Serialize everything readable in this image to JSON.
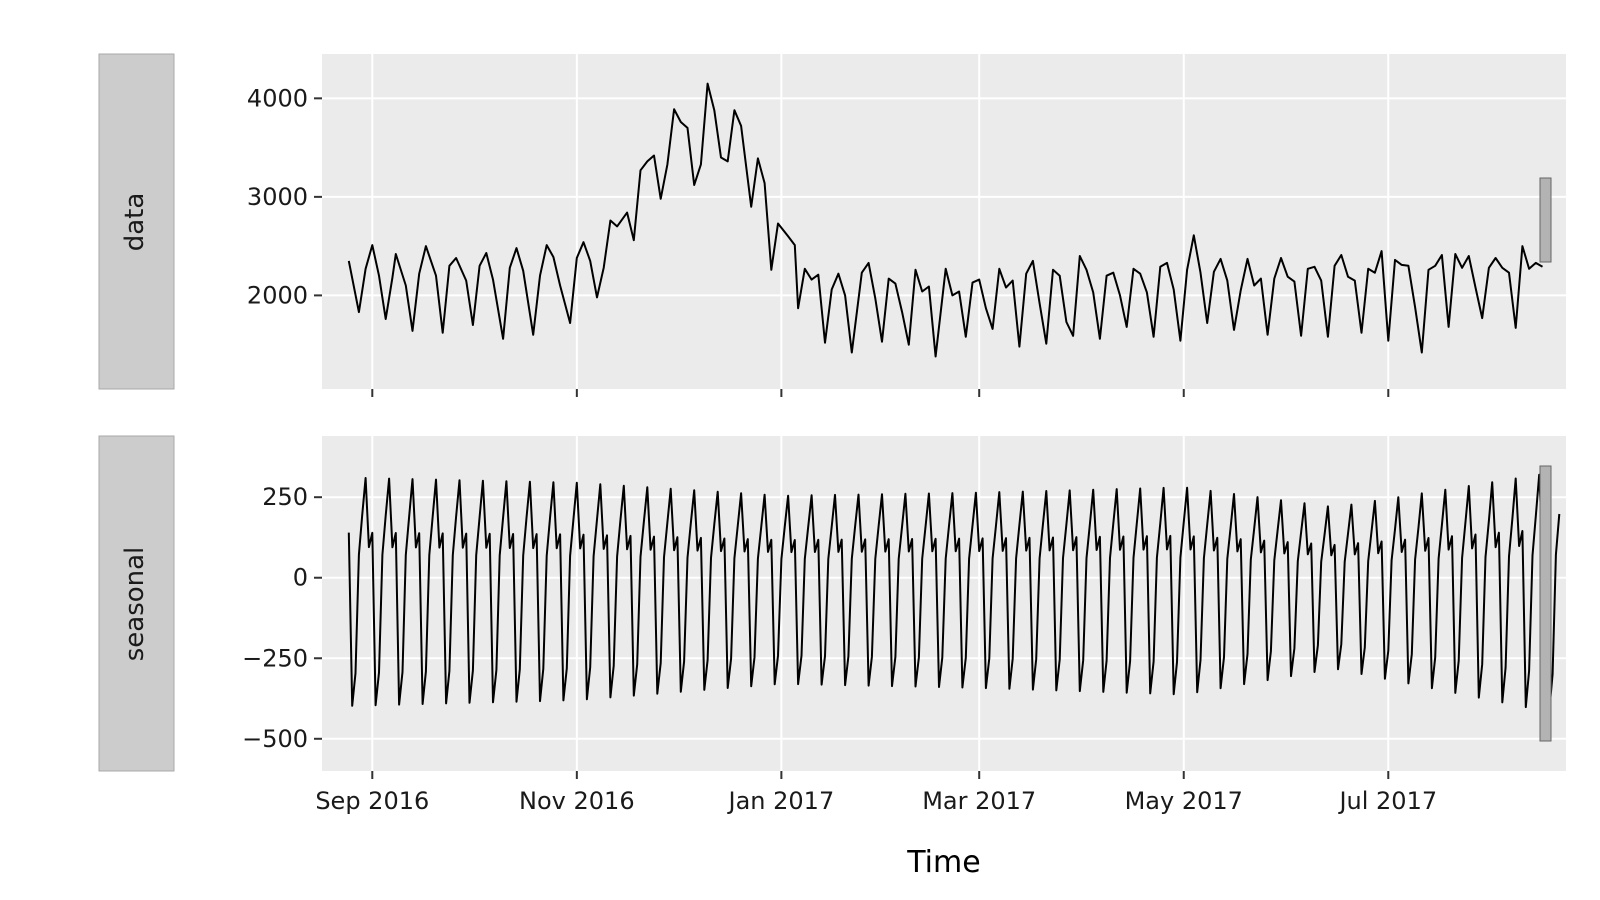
{
  "chart_data": {
    "type": "line",
    "layout": "faceted-vertical",
    "xlabel": "Time",
    "x_tick_labels": [
      "Sep 2016",
      "Nov 2016",
      "Jan 2017",
      "Mar 2017",
      "May 2017",
      "Jul 2017"
    ],
    "x_tick_dates": [
      "2016-09-01",
      "2016-11-01",
      "2017-01-01",
      "2017-03-01",
      "2017-05-01",
      "2017-07-01"
    ],
    "xlim": [
      "2016-08-17",
      "2017-08-23"
    ],
    "line_color": "#000000",
    "panel_background": "#ebebeb",
    "strip_background": "#cccccc",
    "grid": true,
    "panels": [
      {
        "strip": "data",
        "ylim": [
          1050,
          4450
        ],
        "y_ticks": [
          2000,
          3000,
          4000
        ],
        "y_tick_labels": [
          "2000",
          "3000",
          "4000"
        ],
        "series": {
          "start": "2016-08-25",
          "points": [
            [
              "2016-08-25",
              2350
            ],
            [
              "2016-08-28",
              1830
            ],
            [
              "2016-08-30",
              2270
            ],
            [
              "2016-09-01",
              2510
            ],
            [
              "2016-09-03",
              2200
            ],
            [
              "2016-09-05",
              1760
            ],
            [
              "2016-09-07",
              2180
            ],
            [
              "2016-09-08",
              2420
            ],
            [
              "2016-09-11",
              2100
            ],
            [
              "2016-09-13",
              1640
            ],
            [
              "2016-09-15",
              2220
            ],
            [
              "2016-09-17",
              2500
            ],
            [
              "2016-09-20",
              2200
            ],
            [
              "2016-09-22",
              1620
            ],
            [
              "2016-09-24",
              2300
            ],
            [
              "2016-09-26",
              2380
            ],
            [
              "2016-09-29",
              2150
            ],
            [
              "2016-10-01",
              1700
            ],
            [
              "2016-10-03",
              2300
            ],
            [
              "2016-10-05",
              2430
            ],
            [
              "2016-10-07",
              2160
            ],
            [
              "2016-10-10",
              1560
            ],
            [
              "2016-10-12",
              2280
            ],
            [
              "2016-10-14",
              2480
            ],
            [
              "2016-10-16",
              2250
            ],
            [
              "2016-10-19",
              1600
            ],
            [
              "2016-10-21",
              2200
            ],
            [
              "2016-10-23",
              2510
            ],
            [
              "2016-10-25",
              2390
            ],
            [
              "2016-10-27",
              2100
            ],
            [
              "2016-10-30",
              1720
            ],
            [
              "2016-11-01",
              2380
            ],
            [
              "2016-11-03",
              2540
            ],
            [
              "2016-11-05",
              2350
            ],
            [
              "2016-11-07",
              1980
            ],
            [
              "2016-11-09",
              2280
            ],
            [
              "2016-11-11",
              2760
            ],
            [
              "2016-11-13",
              2700
            ],
            [
              "2016-11-16",
              2840
            ],
            [
              "2016-11-18",
              2560
            ],
            [
              "2016-11-20",
              3270
            ],
            [
              "2016-11-22",
              3360
            ],
            [
              "2016-11-24",
              3420
            ],
            [
              "2016-11-26",
              2980
            ],
            [
              "2016-11-28",
              3330
            ],
            [
              "2016-11-30",
              3890
            ],
            [
              "2016-12-02",
              3760
            ],
            [
              "2016-12-04",
              3700
            ],
            [
              "2016-12-06",
              3120
            ],
            [
              "2016-12-08",
              3330
            ],
            [
              "2016-12-10",
              4150
            ],
            [
              "2016-12-12",
              3880
            ],
            [
              "2016-12-14",
              3400
            ],
            [
              "2016-12-16",
              3360
            ],
            [
              "2016-12-18",
              3880
            ],
            [
              "2016-12-20",
              3720
            ],
            [
              "2016-12-23",
              2900
            ],
            [
              "2016-12-25",
              3390
            ],
            [
              "2016-12-27",
              3140
            ],
            [
              "2016-12-29",
              2260
            ],
            [
              "2016-12-31",
              2730
            ],
            [
              "2017-01-03",
              2600
            ],
            [
              "2017-01-05",
              2510
            ],
            [
              "2017-01-06",
              1870
            ],
            [
              "2017-01-08",
              2270
            ],
            [
              "2017-01-10",
              2160
            ],
            [
              "2017-01-12",
              2210
            ],
            [
              "2017-01-14",
              1520
            ],
            [
              "2017-01-16",
              2060
            ],
            [
              "2017-01-18",
              2220
            ],
            [
              "2017-01-20",
              2000
            ],
            [
              "2017-01-22",
              1420
            ],
            [
              "2017-01-25",
              2230
            ],
            [
              "2017-01-27",
              2330
            ],
            [
              "2017-01-29",
              1970
            ],
            [
              "2017-01-31",
              1530
            ],
            [
              "2017-02-02",
              2170
            ],
            [
              "2017-02-04",
              2120
            ],
            [
              "2017-02-06",
              1830
            ],
            [
              "2017-02-08",
              1500
            ],
            [
              "2017-02-10",
              2260
            ],
            [
              "2017-02-12",
              2040
            ],
            [
              "2017-02-14",
              2090
            ],
            [
              "2017-02-16",
              1380
            ],
            [
              "2017-02-19",
              2270
            ],
            [
              "2017-02-21",
              2000
            ],
            [
              "2017-02-23",
              2040
            ],
            [
              "2017-02-25",
              1580
            ],
            [
              "2017-02-27",
              2130
            ],
            [
              "2017-03-01",
              2160
            ],
            [
              "2017-03-03",
              1870
            ],
            [
              "2017-03-05",
              1660
            ],
            [
              "2017-03-07",
              2270
            ],
            [
              "2017-03-09",
              2080
            ],
            [
              "2017-03-11",
              2150
            ],
            [
              "2017-03-13",
              1480
            ],
            [
              "2017-03-15",
              2220
            ],
            [
              "2017-03-17",
              2350
            ],
            [
              "2017-03-19",
              1920
            ],
            [
              "2017-03-21",
              1510
            ],
            [
              "2017-03-23",
              2260
            ],
            [
              "2017-03-25",
              2200
            ],
            [
              "2017-03-27",
              1730
            ],
            [
              "2017-03-29",
              1590
            ],
            [
              "2017-03-31",
              2400
            ],
            [
              "2017-04-02",
              2260
            ],
            [
              "2017-04-04",
              2030
            ],
            [
              "2017-04-06",
              1560
            ],
            [
              "2017-04-08",
              2200
            ],
            [
              "2017-04-10",
              2230
            ],
            [
              "2017-04-12",
              2000
            ],
            [
              "2017-04-14",
              1680
            ],
            [
              "2017-04-16",
              2270
            ],
            [
              "2017-04-18",
              2220
            ],
            [
              "2017-04-20",
              2030
            ],
            [
              "2017-04-22",
              1580
            ],
            [
              "2017-04-24",
              2290
            ],
            [
              "2017-04-26",
              2330
            ],
            [
              "2017-04-28",
              2060
            ],
            [
              "2017-04-30",
              1540
            ],
            [
              "2017-05-02",
              2260
            ],
            [
              "2017-05-04",
              2610
            ],
            [
              "2017-05-06",
              2230
            ],
            [
              "2017-05-08",
              1720
            ],
            [
              "2017-05-10",
              2240
            ],
            [
              "2017-05-12",
              2370
            ],
            [
              "2017-05-14",
              2150
            ],
            [
              "2017-05-16",
              1650
            ],
            [
              "2017-05-18",
              2050
            ],
            [
              "2017-05-20",
              2370
            ],
            [
              "2017-05-22",
              2100
            ],
            [
              "2017-05-24",
              2170
            ],
            [
              "2017-05-26",
              1600
            ],
            [
              "2017-05-28",
              2170
            ],
            [
              "2017-05-30",
              2380
            ],
            [
              "2017-06-01",
              2190
            ],
            [
              "2017-06-03",
              2140
            ],
            [
              "2017-06-05",
              1590
            ],
            [
              "2017-06-07",
              2270
            ],
            [
              "2017-06-09",
              2290
            ],
            [
              "2017-06-11",
              2150
            ],
            [
              "2017-06-13",
              1580
            ],
            [
              "2017-06-15",
              2300
            ],
            [
              "2017-06-17",
              2410
            ],
            [
              "2017-06-19",
              2190
            ],
            [
              "2017-06-21",
              2150
            ],
            [
              "2017-06-23",
              1620
            ],
            [
              "2017-06-25",
              2270
            ],
            [
              "2017-06-27",
              2230
            ],
            [
              "2017-06-29",
              2450
            ],
            [
              "2017-07-01",
              1540
            ],
            [
              "2017-07-03",
              2360
            ],
            [
              "2017-07-05",
              2310
            ],
            [
              "2017-07-07",
              2300
            ],
            [
              "2017-07-09",
              1880
            ],
            [
              "2017-07-11",
              1420
            ],
            [
              "2017-07-13",
              2260
            ],
            [
              "2017-07-15",
              2300
            ],
            [
              "2017-07-17",
              2410
            ],
            [
              "2017-07-19",
              1680
            ],
            [
              "2017-07-21",
              2420
            ],
            [
              "2017-07-23",
              2280
            ],
            [
              "2017-07-25",
              2400
            ],
            [
              "2017-07-27",
              2080
            ],
            [
              "2017-07-29",
              1770
            ],
            [
              "2017-07-31",
              2280
            ],
            [
              "2017-08-02",
              2380
            ],
            [
              "2017-08-04",
              2280
            ],
            [
              "2017-08-06",
              2230
            ],
            [
              "2017-08-08",
              1670
            ],
            [
              "2017-08-10",
              2500
            ],
            [
              "2017-08-12",
              2270
            ],
            [
              "2017-08-14",
              2330
            ],
            [
              "2017-08-16",
              2290
            ]
          ]
        }
      },
      {
        "strip": "seasonal",
        "ylim": [
          -600,
          440
        ],
        "y_ticks": [
          -500,
          -250,
          0,
          250
        ],
        "y_tick_labels": [
          "−500",
          "−250",
          "0",
          "250"
        ],
        "weekly_cycle": [
          140,
          -380,
          -280,
          70,
          200,
          330,
          100
        ],
        "cycle_start": "2016-08-25",
        "cycle_end": "2017-08-21",
        "amplitude_trend": [
          [
            "2016-08-25",
            1.0
          ],
          [
            "2016-11-01",
            0.95
          ],
          [
            "2017-01-01",
            0.82
          ],
          [
            "2017-03-01",
            0.85
          ],
          [
            "2017-05-01",
            0.9
          ],
          [
            "2017-06-15",
            0.7
          ],
          [
            "2017-08-21",
            1.05
          ]
        ]
      }
    ]
  }
}
